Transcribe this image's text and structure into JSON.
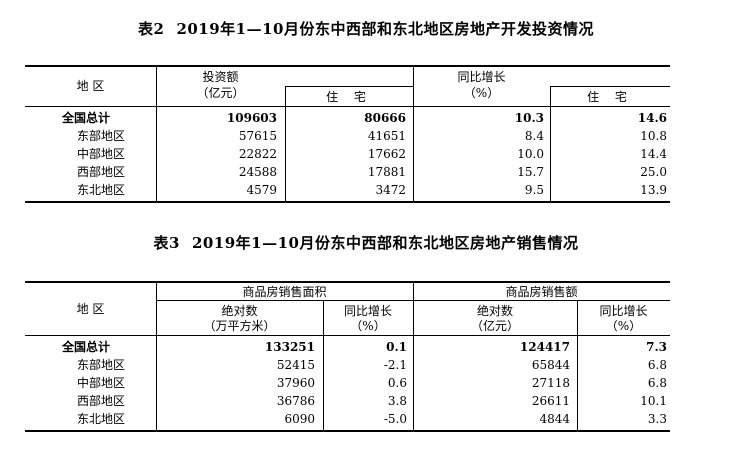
{
  "table2": {
    "title_num": "表2",
    "title_text": "2019年1—10月份东中西部和东北地区房地产开发投资情况",
    "header": {
      "region": "地 区",
      "investment": "投资额",
      "investment_unit": "（亿元）",
      "residential": "住 宅",
      "growth": "同比增长",
      "growth_unit": "（%）",
      "growth_residential": "住 宅"
    },
    "rows": [
      {
        "region": "全国总计",
        "investment": "109603",
        "residential": "80666",
        "growth": "10.3",
        "growth_residential": "14.6"
      },
      {
        "region": "东部地区",
        "investment": "57615",
        "residential": "41651",
        "growth": "8.4",
        "growth_residential": "10.8"
      },
      {
        "region": "中部地区",
        "investment": "22822",
        "residential": "17662",
        "growth": "10.0",
        "growth_residential": "14.4"
      },
      {
        "region": "西部地区",
        "investment": "24588",
        "residential": "17881",
        "growth": "15.7",
        "growth_residential": "25.0"
      },
      {
        "region": "东北地区",
        "investment": "4579",
        "residential": "3472",
        "growth": "9.5",
        "growth_residential": "13.9"
      }
    ]
  },
  "table3": {
    "title_num": "表3",
    "title_text": "2019年1—10月份东中西部和东北地区房地产销售情况",
    "header": {
      "region": "地 区",
      "area_group": "商品房销售面积",
      "sales_group": "商品房销售额",
      "area_abs": "绝对数",
      "area_unit": "（万平方米）",
      "area_growth": "同比增长",
      "area_growth_unit": "（%）",
      "sales_abs": "绝对数",
      "sales_unit": "（亿元）",
      "sales_growth": "同比增长",
      "sales_growth_unit": "（%）"
    },
    "rows": [
      {
        "region": "全国总计",
        "area": "133251",
        "area_growth": "0.1",
        "sales": "124417",
        "sales_growth": "7.3"
      },
      {
        "region": "东部地区",
        "area": "52415",
        "area_growth": "-2.1",
        "sales": "65844",
        "sales_growth": "6.8"
      },
      {
        "region": "中部地区",
        "area": "37960",
        "area_growth": "0.6",
        "sales": "27118",
        "sales_growth": "6.8"
      },
      {
        "region": "西部地区",
        "area": "36786",
        "area_growth": "3.8",
        "sales": "26611",
        "sales_growth": "10.1"
      },
      {
        "region": "东北地区",
        "area": "6090",
        "area_growth": "-5.0",
        "sales": "4844",
        "sales_growth": "3.3"
      }
    ]
  }
}
